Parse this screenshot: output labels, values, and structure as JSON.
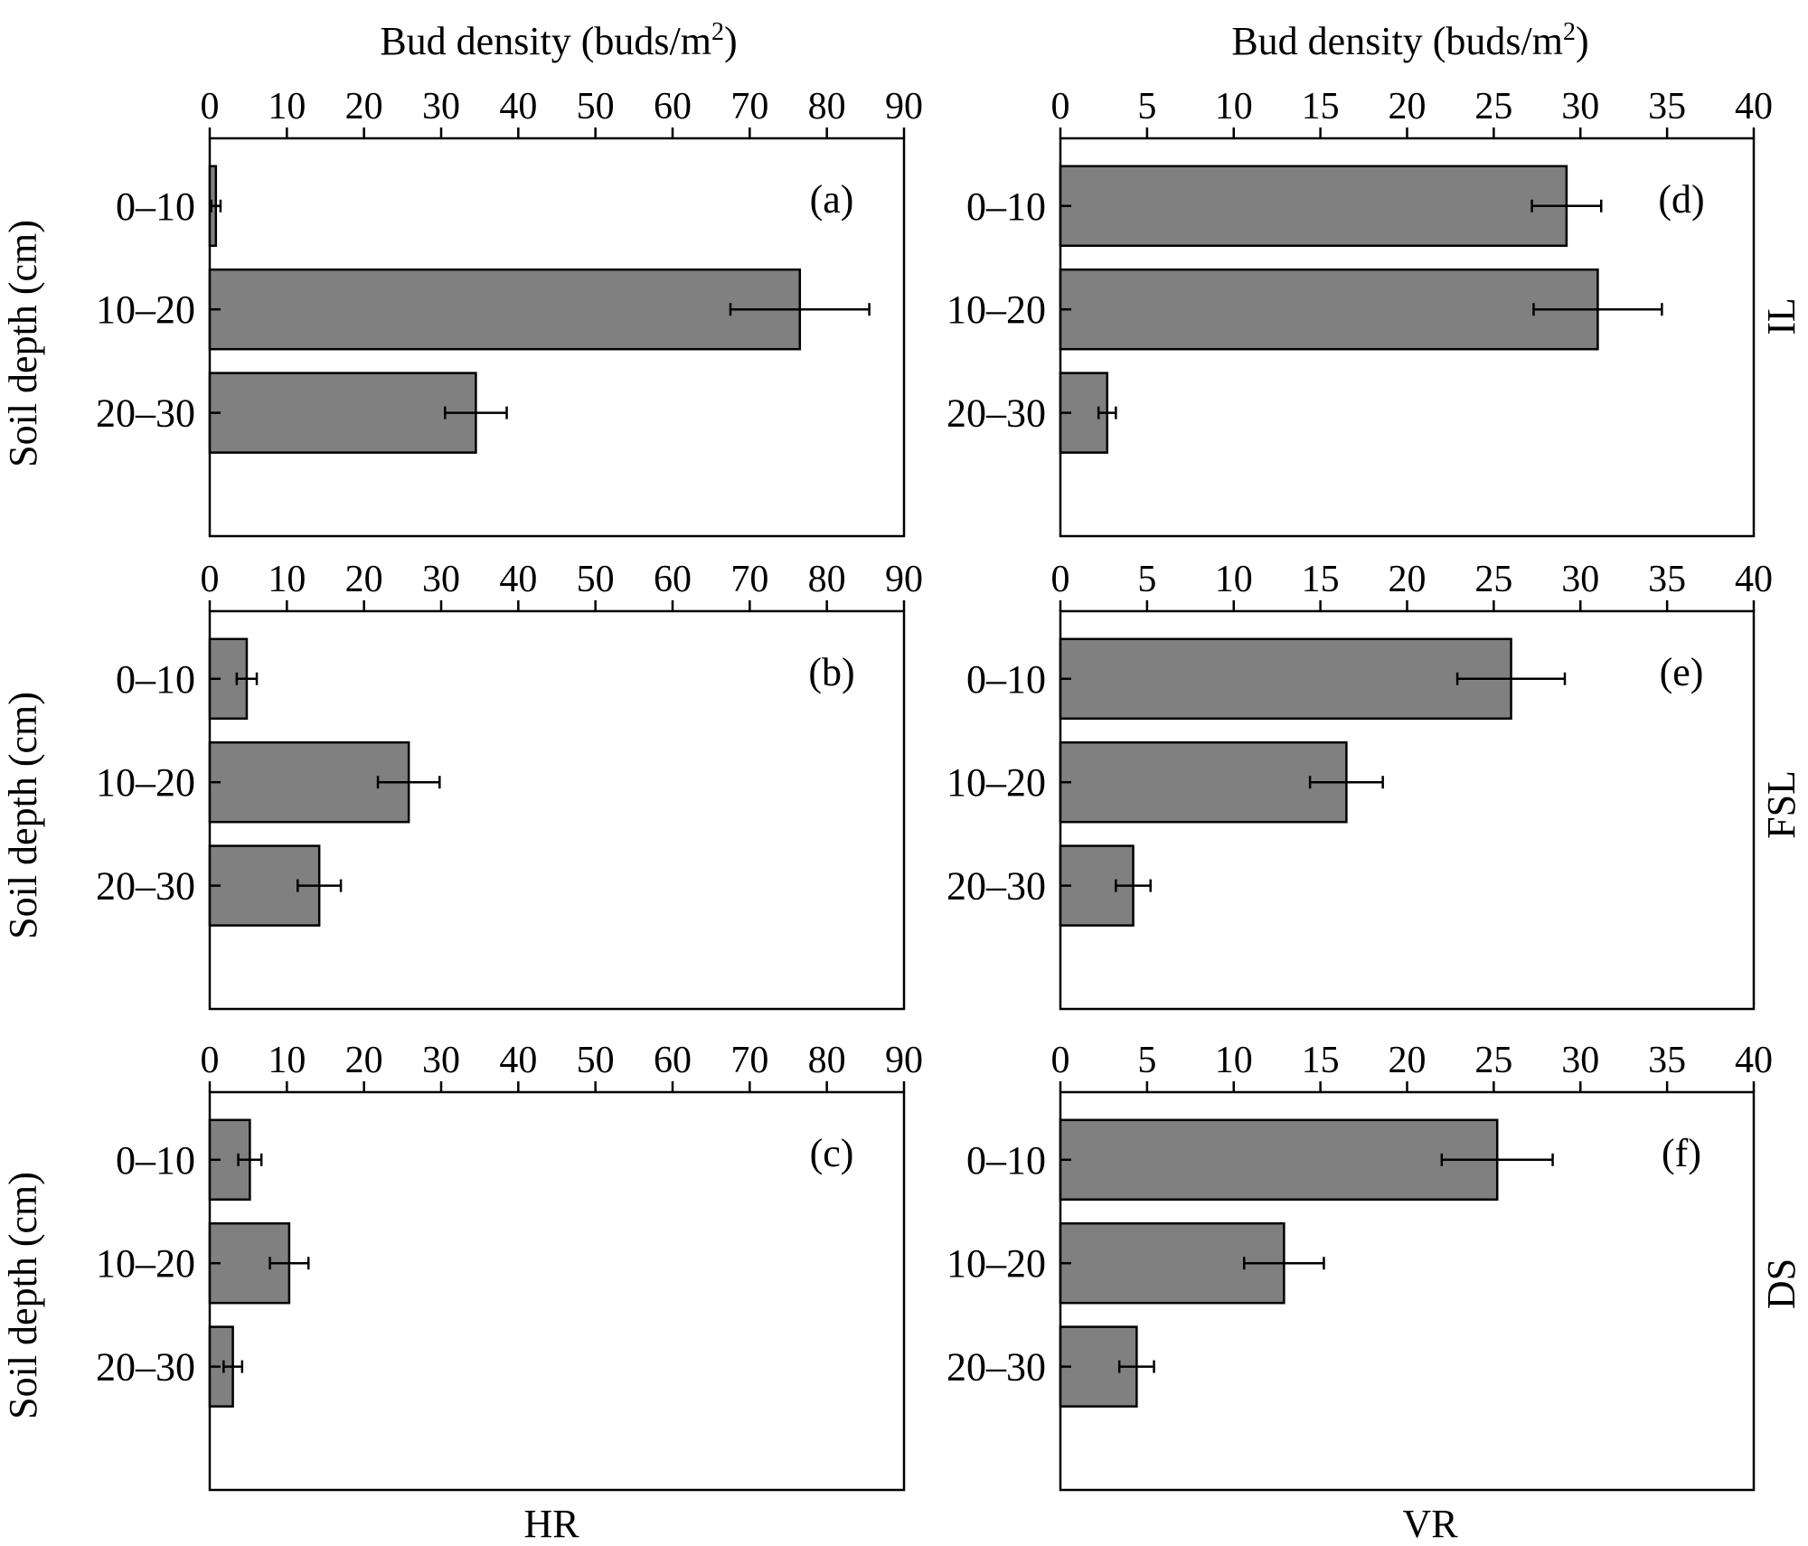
{
  "figure": {
    "top_axis_title_prefix": "Bud density (buds/m",
    "top_axis_title_sup": "2",
    "top_axis_title_suffix": ")",
    "y_axis_title": "Soil depth (cm)",
    "columns": [
      "HR",
      "VR"
    ],
    "rows": [
      "IL",
      "FSL",
      "DS"
    ],
    "bar_color": "#808080"
  },
  "chart_data": [
    {
      "type": "bar",
      "orientation": "horizontal",
      "panel": "(a)",
      "column": "HR",
      "row": "IL",
      "xlabel": "Bud density (buds/m2)",
      "ylabel": "Soil depth (cm)",
      "xlim": [
        0,
        90
      ],
      "xticks": [
        0,
        10,
        20,
        30,
        40,
        50,
        60,
        70,
        80,
        90
      ],
      "categories": [
        "0–10",
        "10–20",
        "20–30"
      ],
      "values": [
        0.8,
        76.5,
        34.5
      ],
      "errors": [
        0.6,
        9.0,
        4.0
      ]
    },
    {
      "type": "bar",
      "orientation": "horizontal",
      "panel": "(b)",
      "column": "HR",
      "row": "FSL",
      "xlabel": "Bud density (buds/m2)",
      "ylabel": "Soil depth (cm)",
      "xlim": [
        0,
        90
      ],
      "xticks": [
        0,
        10,
        20,
        30,
        40,
        50,
        60,
        70,
        80,
        90
      ],
      "categories": [
        "0–10",
        "10–20",
        "20–30"
      ],
      "values": [
        4.8,
        25.8,
        14.2
      ],
      "errors": [
        1.3,
        4.0,
        2.8
      ]
    },
    {
      "type": "bar",
      "orientation": "horizontal",
      "panel": "(c)",
      "column": "HR",
      "row": "DS",
      "xlabel": "Bud density (buds/m2)",
      "ylabel": "Soil depth (cm)",
      "xlim": [
        0,
        90
      ],
      "xticks": [
        0,
        10,
        20,
        30,
        40,
        50,
        60,
        70,
        80,
        90
      ],
      "categories": [
        "0–10",
        "10–20",
        "20–30"
      ],
      "values": [
        5.2,
        10.3,
        3.0
      ],
      "errors": [
        1.5,
        2.5,
        1.2
      ]
    },
    {
      "type": "bar",
      "orientation": "horizontal",
      "panel": "(d)",
      "column": "VR",
      "row": "IL",
      "xlabel": "Bud density (buds/m2)",
      "ylabel": "Soil depth (cm)",
      "xlim": [
        0,
        40
      ],
      "xticks": [
        0,
        5,
        10,
        15,
        20,
        25,
        30,
        35,
        40
      ],
      "categories": [
        "0–10",
        "10–20",
        "20–30"
      ],
      "values": [
        29.2,
        31.0,
        2.7
      ],
      "errors": [
        2.0,
        3.7,
        0.5
      ]
    },
    {
      "type": "bar",
      "orientation": "horizontal",
      "panel": "(e)",
      "column": "VR",
      "row": "FSL",
      "xlabel": "Bud density (buds/m2)",
      "ylabel": "Soil depth (cm)",
      "xlim": [
        0,
        40
      ],
      "xticks": [
        0,
        5,
        10,
        15,
        20,
        25,
        30,
        35,
        40
      ],
      "categories": [
        "0–10",
        "10–20",
        "20–30"
      ],
      "values": [
        26.0,
        16.5,
        4.2
      ],
      "errors": [
        3.1,
        2.1,
        1.0
      ]
    },
    {
      "type": "bar",
      "orientation": "horizontal",
      "panel": "(f)",
      "column": "VR",
      "row": "DS",
      "xlabel": "Bud density (buds/m2)",
      "ylabel": "Soil depth (cm)",
      "xlim": [
        0,
        40
      ],
      "xticks": [
        0,
        5,
        10,
        15,
        20,
        25,
        30,
        35,
        40
      ],
      "categories": [
        "0–10",
        "10–20",
        "20–30"
      ],
      "values": [
        25.2,
        12.9,
        4.4
      ],
      "errors": [
        3.2,
        2.3,
        1.0
      ]
    }
  ]
}
